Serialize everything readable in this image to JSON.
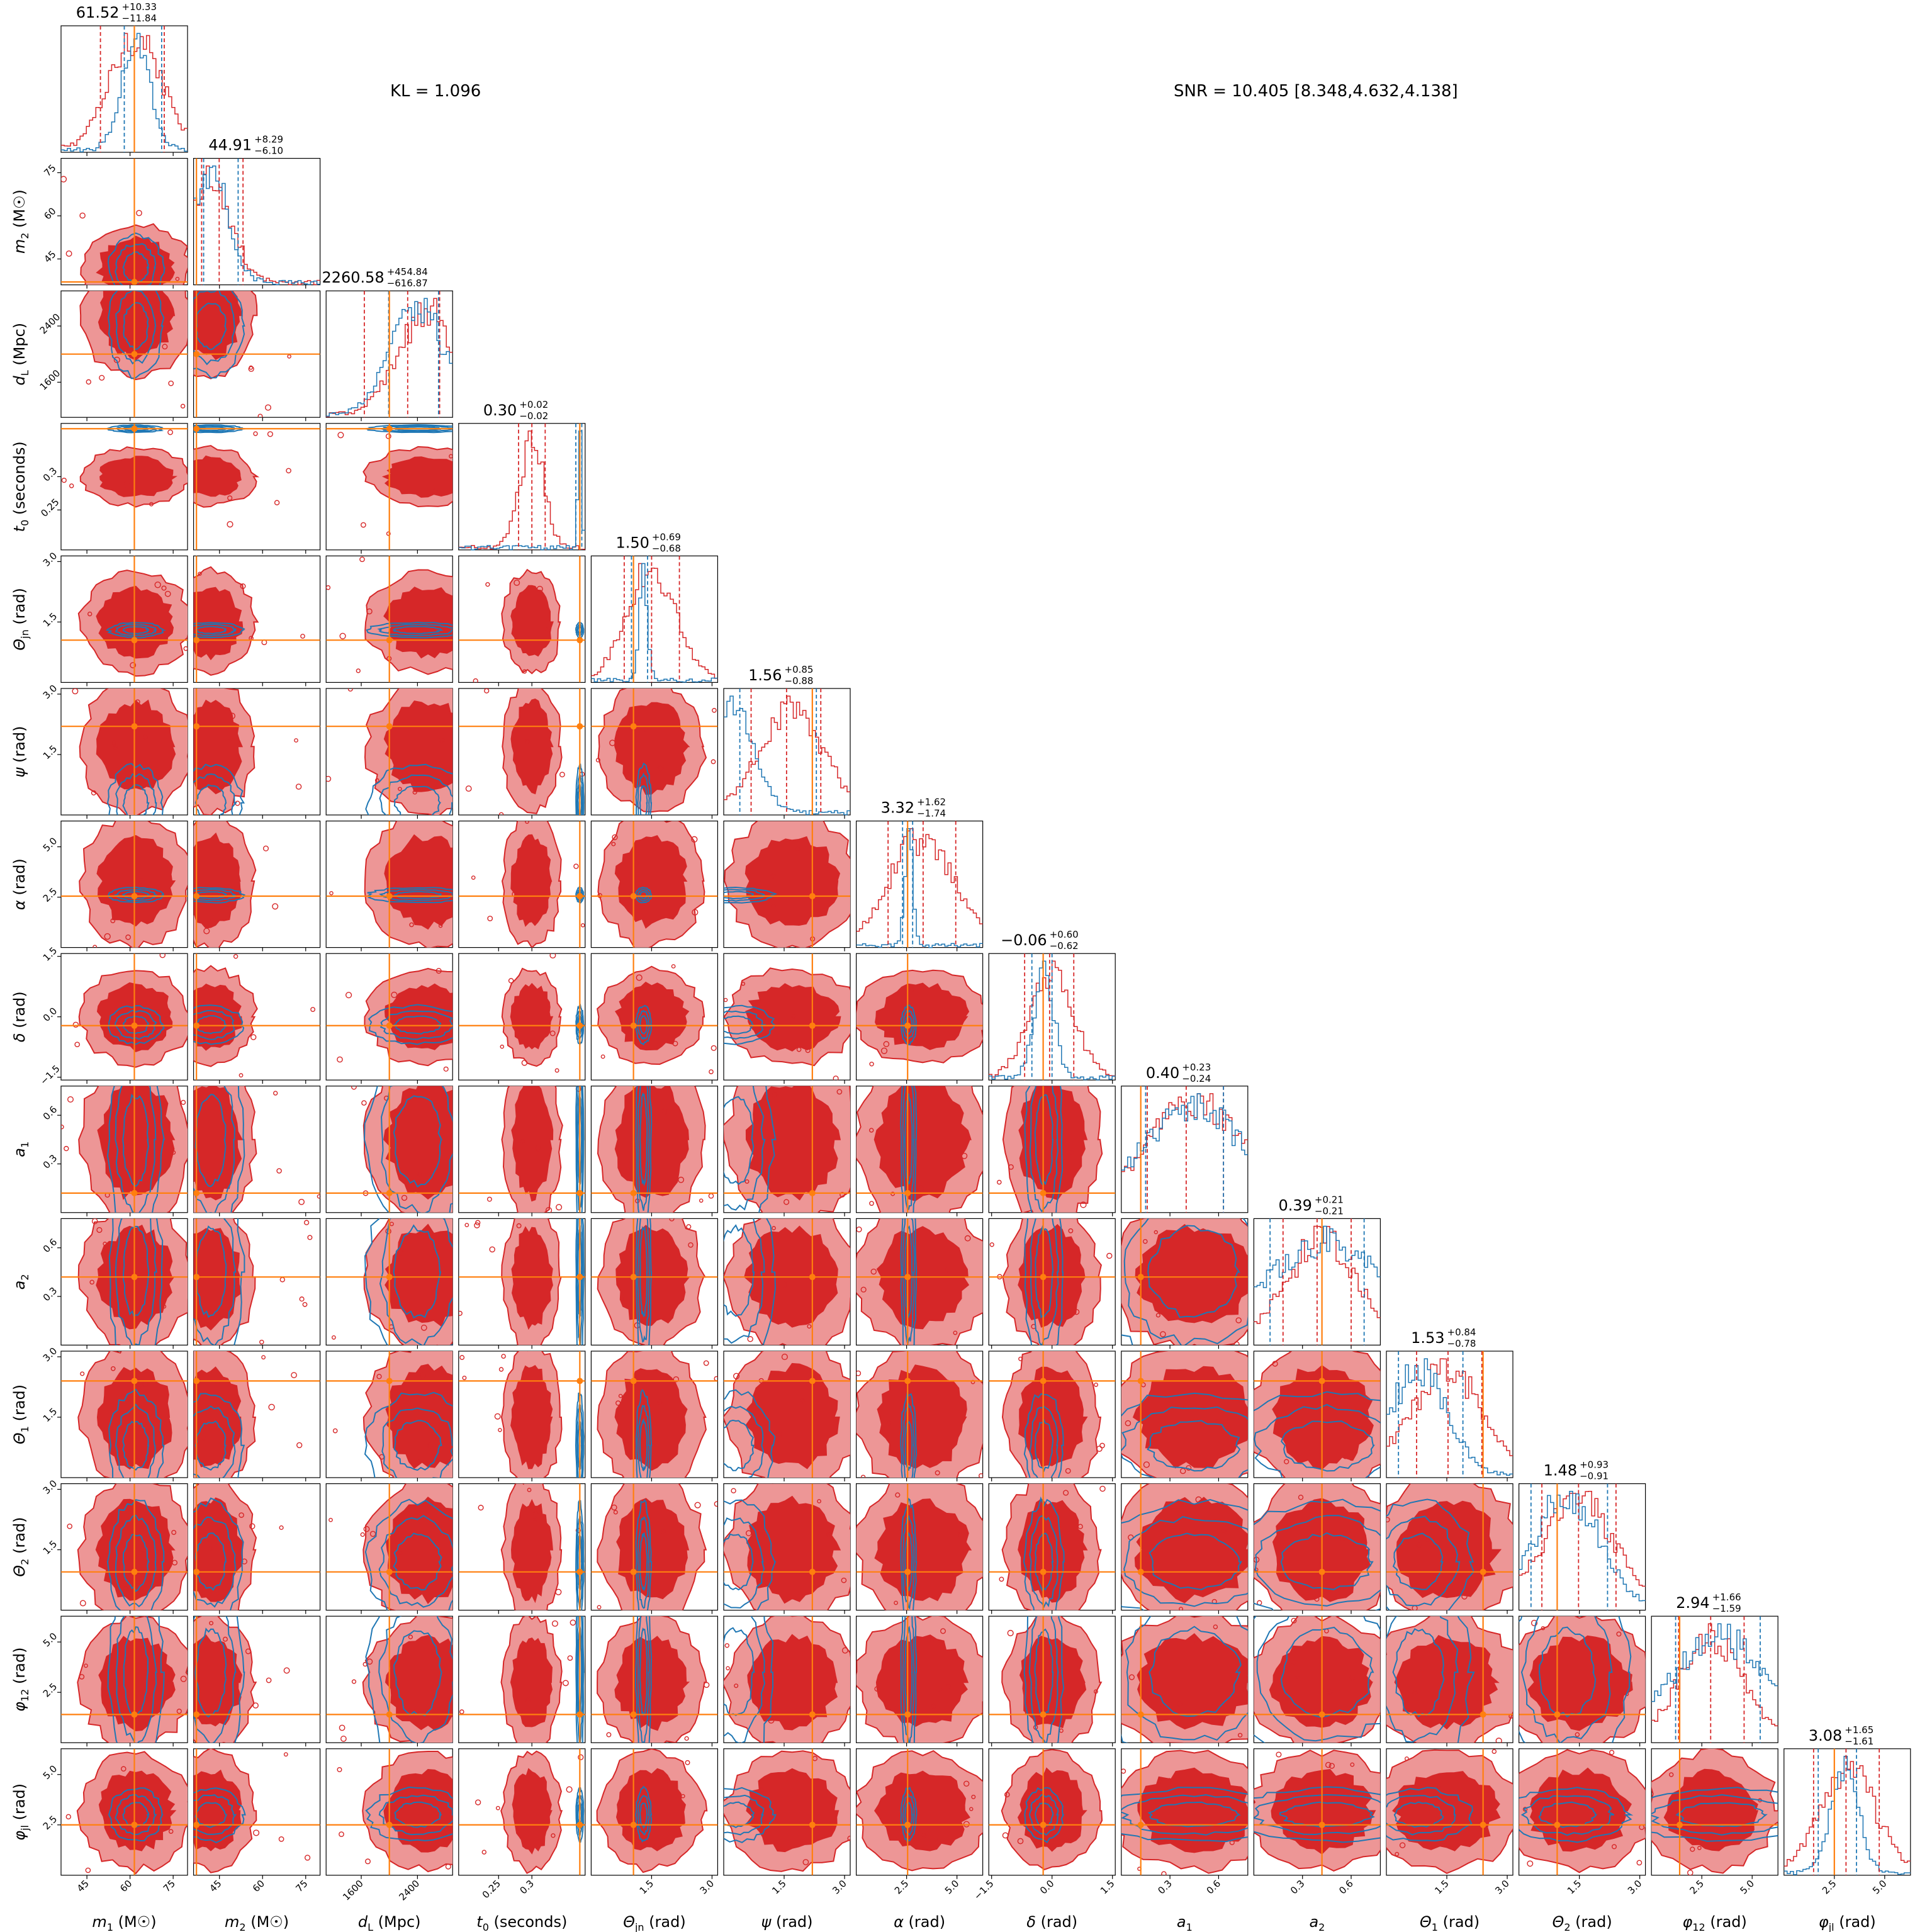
{
  "header": {
    "kl_text": "KL = 1.096",
    "snr_text": "SNR = 10.405 [8.348,4.632,4.138]"
  },
  "chart_data": {
    "type": "corner",
    "title": "",
    "colors": {
      "posterior_a": "#d62728",
      "posterior_a_fill": "#ed9696",
      "posterior_b": "#1f77b4",
      "truth": "#ff7f0e"
    },
    "series": [
      {
        "name": ""
      },
      {
        "name": ""
      }
    ],
    "parameters": [
      {
        "label": "m1 (M☉)",
        "sym": "m",
        "sub": "1",
        "unit": "(M☉)",
        "range": [
          36,
          80
        ],
        "ticks": [
          45,
          60,
          75
        ],
        "truth": 61.5,
        "median": 61.52,
        "plus": "+10.33",
        "minus": "−11.84",
        "title_num": "61.52",
        "qa": [
          49.7,
          71.9
        ],
        "qb": [
          58,
          71
        ],
        "mode_a": 62,
        "mode_b": 62,
        "sa": 9,
        "sb": 5
      },
      {
        "label": "m2 (M☉)",
        "sym": "m",
        "sub": "2",
        "unit": "(M☉)",
        "range": [
          36,
          80
        ],
        "ticks": [
          45,
          60,
          75
        ],
        "truth": 37,
        "median": 44.91,
        "plus": "+8.29",
        "minus": "−6.10",
        "title_num": "44.91",
        "qa": [
          38.8,
          53.2
        ],
        "qb": [
          39.5,
          51.5
        ],
        "mode_a": 42,
        "mode_b": 42,
        "sa": 7,
        "sb": 6
      },
      {
        "label": "dL (Mpc)",
        "sym": "d",
        "sub": "L",
        "unit": "(Mpc)",
        "range": [
          1100,
          2900
        ],
        "ticks": [
          1600,
          2400
        ],
        "truth": 2000,
        "median": 2260.58,
        "plus": "+454.84",
        "minus": "−616.87",
        "title_num": "2260.58",
        "qa": [
          1643.7,
          2715.4
        ],
        "qb": [
          1990,
          2700
        ],
        "mode_a": 2550,
        "mode_b": 2400,
        "sa": 420,
        "sb": 380
      },
      {
        "label": "t0 (seconds)",
        "sym": "t",
        "sub": "0",
        "unit": "(seconds)",
        "range": [
          0.19,
          0.38
        ],
        "ticks": [
          0.25,
          0.3
        ],
        "truth": 0.372,
        "median": 0.3,
        "plus": "+0.02",
        "minus": "−0.02",
        "title_num": "0.30",
        "qa": [
          0.28,
          0.32
        ],
        "qb": [
          0.366,
          0.375
        ],
        "mode_a": 0.3,
        "mode_b": 0.372,
        "sa": 0.018,
        "sb": 0.003
      },
      {
        "label": "Θjn (rad)",
        "sym": "Θ",
        "sub": "jn",
        "unit": "(rad)",
        "range": [
          0,
          3.14
        ],
        "ticks": [
          1.5,
          3.0
        ],
        "truth": 1.05,
        "median": 1.5,
        "plus": "+0.69",
        "minus": "−0.68",
        "title_num": "1.50",
        "qa": [
          0.82,
          2.19
        ],
        "qb": [
          1.0,
          1.4
        ],
        "mode_a": 1.5,
        "mode_b": 1.3,
        "sa": 0.6,
        "sb": 0.1
      },
      {
        "label": "ψ (rad)",
        "sym": "ψ",
        "sub": "",
        "unit": "(rad)",
        "range": [
          0,
          3.14
        ],
        "ticks": [
          1.5,
          3.0
        ],
        "truth": 2.2,
        "median": 1.56,
        "plus": "+0.85",
        "minus": "−0.88",
        "title_num": "1.56",
        "qa": [
          0.68,
          2.41
        ],
        "qb": [
          0.4,
          2.3
        ],
        "mode_a": 1.7,
        "mode_b": 0.3,
        "sa": 0.8,
        "sb": 0.5
      },
      {
        "label": "α (rad)",
        "sym": "α",
        "sub": "",
        "unit": "(rad)",
        "range": [
          0,
          6.28
        ],
        "ticks": [
          2.5,
          5.0
        ],
        "truth": 2.55,
        "median": 3.32,
        "plus": "+1.62",
        "minus": "−1.74",
        "title_num": "3.32",
        "qa": [
          1.58,
          4.94
        ],
        "qb": [
          2.3,
          2.8
        ],
        "mode_a": 3.3,
        "mode_b": 2.6,
        "sa": 1.6,
        "sb": 0.2
      },
      {
        "label": "δ (rad)",
        "sym": "δ",
        "sub": "",
        "unit": "(rad)",
        "range": [
          -1.57,
          1.57
        ],
        "ticks": [
          -1.5,
          0.0,
          1.5
        ],
        "truth": -0.22,
        "median": -0.06,
        "plus": "+0.60",
        "minus": "−0.62",
        "title_num": "−0.06",
        "qa": [
          -0.68,
          0.54
        ],
        "qb": [
          -0.5,
          0.0
        ],
        "mode_a": 0.0,
        "mode_b": -0.2,
        "sa": 0.55,
        "sb": 0.25
      },
      {
        "label": "a1",
        "sym": "a",
        "sub": "1",
        "unit": "",
        "range": [
          0,
          0.78
        ],
        "ticks": [
          0.3,
          0.6
        ],
        "truth": 0.12,
        "median": 0.4,
        "plus": "+0.23",
        "minus": "−0.24",
        "title_num": "0.40",
        "qa": [
          0.16,
          0.63
        ],
        "qb": [
          0.15,
          0.63
        ],
        "mode_a": 0.45,
        "mode_b": 0.45,
        "sa": 0.3,
        "sb": 0.32
      },
      {
        "label": "a2",
        "sym": "a",
        "sub": "2",
        "unit": "",
        "range": [
          0,
          0.78
        ],
        "ticks": [
          0.3,
          0.6
        ],
        "truth": 0.42,
        "median": 0.39,
        "plus": "+0.21",
        "minus": "−0.21",
        "title_num": "0.39",
        "qa": [
          0.18,
          0.6
        ],
        "qb": [
          0.1,
          0.68
        ],
        "mode_a": 0.42,
        "mode_b": 0.45,
        "sa": 0.22,
        "sb": 0.4
      },
      {
        "label": "Θ1 (rad)",
        "sym": "Θ",
        "sub": "1",
        "unit": "(rad)",
        "range": [
          0,
          3.14
        ],
        "ticks": [
          1.5,
          3.0
        ],
        "truth": 2.4,
        "median": 1.53,
        "plus": "+0.84",
        "minus": "−0.78",
        "title_num": "1.53",
        "qa": [
          0.75,
          2.37
        ],
        "qb": [
          0.3,
          1.9
        ],
        "mode_a": 1.5,
        "mode_b": 0.8,
        "sa": 0.9,
        "sb": 0.7
      },
      {
        "label": "Θ2 (rad)",
        "sym": "Θ",
        "sub": "2",
        "unit": "(rad)",
        "range": [
          0,
          3.14
        ],
        "ticks": [
          1.5,
          3.0
        ],
        "truth": 0.95,
        "median": 1.48,
        "plus": "+0.93",
        "minus": "−0.91",
        "title_num": "1.48",
        "qa": [
          0.57,
          2.41
        ],
        "qb": [
          0.3,
          2.2
        ],
        "mode_a": 1.5,
        "mode_b": 1.2,
        "sa": 0.9,
        "sb": 0.8
      },
      {
        "label": "φ12 (rad)",
        "sym": "φ",
        "sub": "12",
        "unit": "(rad)",
        "range": [
          0,
          6.28
        ],
        "ticks": [
          2.5,
          5.0
        ],
        "truth": 1.4,
        "median": 2.94,
        "plus": "+1.66",
        "minus": "−1.59",
        "title_num": "2.94",
        "qa": [
          1.35,
          4.6
        ],
        "qb": [
          1.2,
          5.4
        ],
        "mode_a": 3.0,
        "mode_b": 3.5,
        "sa": 1.6,
        "sb": 2.5
      },
      {
        "label": "φjl (rad)",
        "sym": "φ",
        "sub": "jl",
        "unit": "(rad)",
        "range": [
          0,
          6.28
        ],
        "ticks": [
          2.5,
          5.0
        ],
        "truth": 2.5,
        "median": 3.08,
        "plus": "+1.65",
        "minus": "−1.61",
        "title_num": "3.08",
        "qa": [
          1.47,
          4.73
        ],
        "qb": [
          1.7,
          3.6
        ],
        "mode_a": 3.2,
        "mode_b": 3.0,
        "sa": 1.4,
        "sb": 0.7
      }
    ]
  }
}
